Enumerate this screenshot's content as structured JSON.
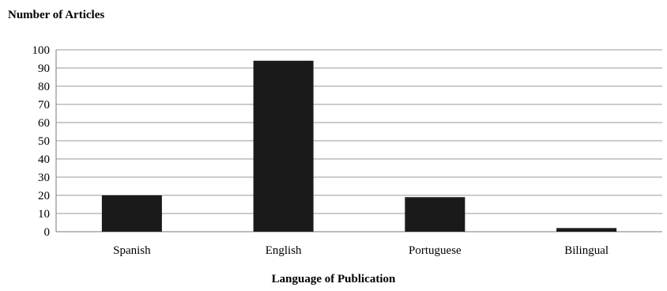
{
  "chart_data": {
    "type": "bar",
    "title": "",
    "ylabel": "Number of Articles",
    "xlabel": "Language of Publication",
    "categories": [
      "Spanish",
      "English",
      "Portuguese",
      "Bilingual"
    ],
    "values": [
      20,
      94,
      19,
      2
    ],
    "ylim": [
      0,
      100
    ],
    "yticks": [
      "0",
      "10",
      "20",
      "30",
      "40",
      "50",
      "60",
      "70",
      "80",
      "90",
      "100"
    ],
    "grid": true,
    "bar_color": "#1a1a1a",
    "grid_color": "#9a9a9a"
  }
}
